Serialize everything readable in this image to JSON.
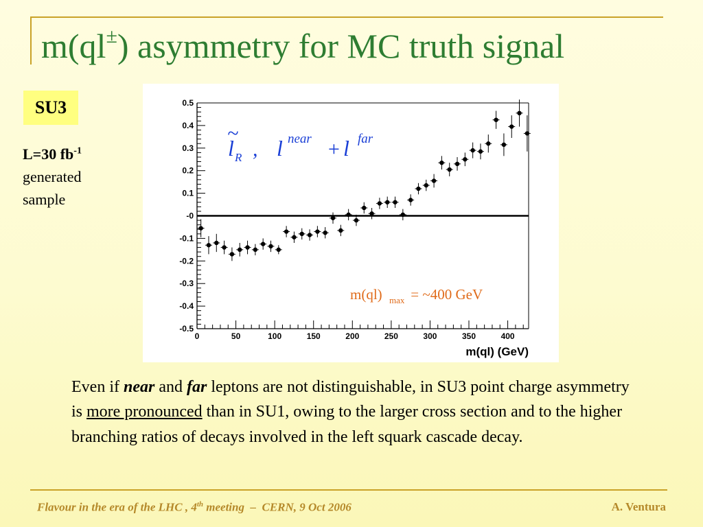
{
  "slide": {
    "title_main": "m(ql",
    "title_sup": "±",
    "title_rest": ") asymmetry for MC truth signal",
    "badge": "SU3",
    "lumi_prefix": "L=30 fb",
    "lumi_sup": "-1",
    "sample_line1": "generated",
    "sample_line2": "sample"
  },
  "formula": {
    "l": "l",
    "R": "R",
    "comma": ",",
    "near": "near",
    "plus": "+",
    "far": "far"
  },
  "annotation": {
    "prefix": "m(ql)",
    "sub": "max",
    "suffix": " = ~400 GeV"
  },
  "body": {
    "p1": "Even if ",
    "near": "near",
    "p2": " and ",
    "far": "far",
    "p3": " leptons are not distinguishable, in SU3 point charge asymmetry is ",
    "underlined": "more pronounced",
    "p4": " than in SU1, owing to the larger cross section and to the higher branching ratios of decays involved in the left squark cascade decay."
  },
  "footer": {
    "left_pre": "Flavour in the era of the LHC , 4",
    "left_sup": "th",
    "left_post": " meeting  –  CERN, 9 Oct 2006",
    "right": "A. Ventura"
  },
  "chart_data": {
    "type": "scatter",
    "xlabel": "m(ql)  (GeV)",
    "ylabel": "",
    "xlim": [
      0,
      430
    ],
    "ylim": [
      -0.5,
      0.5
    ],
    "xticks": [
      "0",
      "50",
      "100",
      "150",
      "200",
      "250",
      "300",
      "350",
      "400"
    ],
    "yticks": [
      "0.5",
      "0.4",
      "0.3",
      "0.2",
      "0.1",
      "-0",
      "-0.1",
      "-0.2",
      "-0.3",
      "-0.4",
      "-0.5"
    ],
    "reference_line_y": 0,
    "marker_color": "#000000",
    "points": [
      {
        "x": 5,
        "y": -0.055,
        "err": 0.04
      },
      {
        "x": 15,
        "y": -0.13,
        "err": 0.04
      },
      {
        "x": 25,
        "y": -0.12,
        "err": 0.04
      },
      {
        "x": 35,
        "y": -0.14,
        "err": 0.03
      },
      {
        "x": 45,
        "y": -0.17,
        "err": 0.03
      },
      {
        "x": 55,
        "y": -0.15,
        "err": 0.03
      },
      {
        "x": 65,
        "y": -0.14,
        "err": 0.03
      },
      {
        "x": 75,
        "y": -0.15,
        "err": 0.025
      },
      {
        "x": 85,
        "y": -0.125,
        "err": 0.025
      },
      {
        "x": 95,
        "y": -0.135,
        "err": 0.025
      },
      {
        "x": 105,
        "y": -0.15,
        "err": 0.02
      },
      {
        "x": 115,
        "y": -0.07,
        "err": 0.025
      },
      {
        "x": 125,
        "y": -0.095,
        "err": 0.025
      },
      {
        "x": 135,
        "y": -0.08,
        "err": 0.025
      },
      {
        "x": 145,
        "y": -0.085,
        "err": 0.025
      },
      {
        "x": 155,
        "y": -0.07,
        "err": 0.025
      },
      {
        "x": 165,
        "y": -0.075,
        "err": 0.025
      },
      {
        "x": 175,
        "y": -0.01,
        "err": 0.025
      },
      {
        "x": 185,
        "y": -0.065,
        "err": 0.025
      },
      {
        "x": 195,
        "y": 0.005,
        "err": 0.025
      },
      {
        "x": 205,
        "y": -0.02,
        "err": 0.025
      },
      {
        "x": 215,
        "y": 0.035,
        "err": 0.025
      },
      {
        "x": 225,
        "y": 0.01,
        "err": 0.025
      },
      {
        "x": 235,
        "y": 0.055,
        "err": 0.025
      },
      {
        "x": 245,
        "y": 0.06,
        "err": 0.025
      },
      {
        "x": 255,
        "y": 0.06,
        "err": 0.025
      },
      {
        "x": 265,
        "y": 0.005,
        "err": 0.025
      },
      {
        "x": 275,
        "y": 0.07,
        "err": 0.025
      },
      {
        "x": 285,
        "y": 0.12,
        "err": 0.025
      },
      {
        "x": 295,
        "y": 0.135,
        "err": 0.025
      },
      {
        "x": 305,
        "y": 0.155,
        "err": 0.03
      },
      {
        "x": 315,
        "y": 0.235,
        "err": 0.03
      },
      {
        "x": 325,
        "y": 0.205,
        "err": 0.03
      },
      {
        "x": 335,
        "y": 0.23,
        "err": 0.03
      },
      {
        "x": 345,
        "y": 0.25,
        "err": 0.03
      },
      {
        "x": 355,
        "y": 0.29,
        "err": 0.035
      },
      {
        "x": 365,
        "y": 0.285,
        "err": 0.035
      },
      {
        "x": 375,
        "y": 0.32,
        "err": 0.04
      },
      {
        "x": 385,
        "y": 0.425,
        "err": 0.04
      },
      {
        "x": 395,
        "y": 0.315,
        "err": 0.05
      },
      {
        "x": 405,
        "y": 0.395,
        "err": 0.05
      },
      {
        "x": 415,
        "y": 0.455,
        "err": 0.06
      },
      {
        "x": 425,
        "y": 0.365,
        "err": 0.08
      }
    ]
  }
}
